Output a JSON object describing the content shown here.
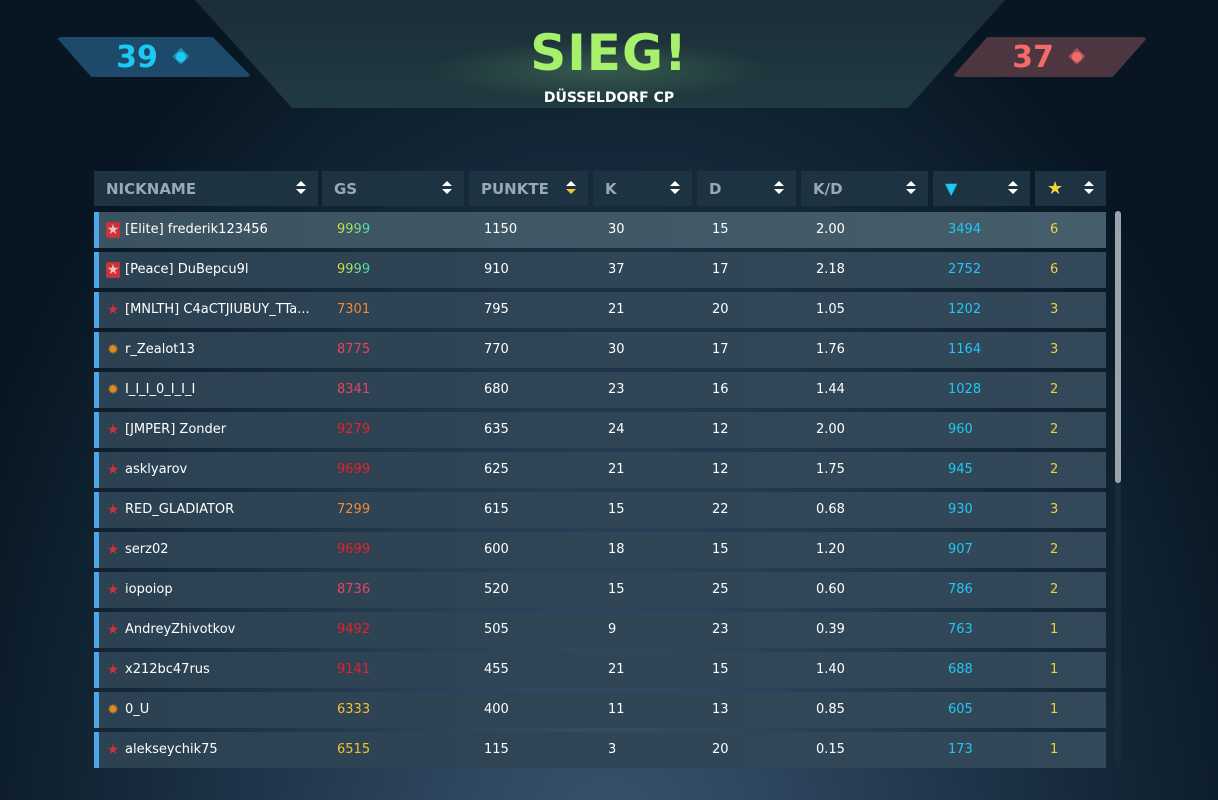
{
  "header": {
    "title": "SIEG!",
    "map": "DÜSSELDORF CP",
    "score_left": "39",
    "score_right": "37",
    "score_icon": "capture-point-icon"
  },
  "columns": [
    {
      "label": "NICKNAME"
    },
    {
      "label": "GS"
    },
    {
      "label": "PUNKTE",
      "sorted": true
    },
    {
      "label": "K"
    },
    {
      "label": "D"
    },
    {
      "label": "K/D"
    },
    {
      "label": "",
      "icon": "diamond-icon"
    },
    {
      "label": "",
      "icon": "star-icon"
    }
  ],
  "colors": {
    "kills_count": "#1ec8f5",
    "stars": "#f2d23c",
    "accent_win": "#a6f06c",
    "team_left": "#1ec8f5",
    "team_right": "#f36a6a"
  },
  "rows": [
    {
      "rank": "elite",
      "name": "[Elite] frederik123456",
      "gs": "9999",
      "gs_color": "#b8e04a",
      "punkte": "1150",
      "k": "30",
      "d": "15",
      "kd": "2.00",
      "dia": "3494",
      "stars": "6",
      "highlight": true
    },
    {
      "rank": "elite",
      "name": "[Peace] DuBepcu9l",
      "gs": "9999",
      "gs_color": "#b8e04a",
      "punkte": "910",
      "k": "37",
      "d": "17",
      "kd": "2.18",
      "dia": "2752",
      "stars": "6"
    },
    {
      "rank": "star",
      "name": "[MNLTH] C4aCTJIUBUY_TTa...",
      "gs": "7301",
      "gs_color": "#f08a3c",
      "punkte": "795",
      "k": "21",
      "d": "20",
      "kd": "1.05",
      "dia": "1202",
      "stars": "3"
    },
    {
      "rank": "gear",
      "name": "r_Zealot13",
      "gs": "8775",
      "gs_color": "#e8435e",
      "punkte": "770",
      "k": "30",
      "d": "17",
      "kd": "1.76",
      "dia": "1164",
      "stars": "3"
    },
    {
      "rank": "gear",
      "name": "I_I_I_0_I_I_I",
      "gs": "8341",
      "gs_color": "#e8435e",
      "punkte": "680",
      "k": "23",
      "d": "16",
      "kd": "1.44",
      "dia": "1028",
      "stars": "2"
    },
    {
      "rank": "star",
      "name": "[JMPER] Zonder",
      "gs": "9279",
      "gs_color": "#e8202a",
      "punkte": "635",
      "k": "24",
      "d": "12",
      "kd": "2.00",
      "dia": "960",
      "stars": "2"
    },
    {
      "rank": "star",
      "name": "asklyarov",
      "gs": "9699",
      "gs_color": "#e8202a",
      "punkte": "625",
      "k": "21",
      "d": "12",
      "kd": "1.75",
      "dia": "945",
      "stars": "2"
    },
    {
      "rank": "star",
      "name": "RED_GLADIATOR",
      "gs": "7299",
      "gs_color": "#f08a3c",
      "punkte": "615",
      "k": "15",
      "d": "22",
      "kd": "0.68",
      "dia": "930",
      "stars": "3"
    },
    {
      "rank": "star",
      "name": "serz02",
      "gs": "9699",
      "gs_color": "#e8202a",
      "punkte": "600",
      "k": "18",
      "d": "15",
      "kd": "1.20",
      "dia": "907",
      "stars": "2"
    },
    {
      "rank": "star",
      "name": "iopoiop",
      "gs": "8736",
      "gs_color": "#e8435e",
      "punkte": "520",
      "k": "15",
      "d": "25",
      "kd": "0.60",
      "dia": "786",
      "stars": "2"
    },
    {
      "rank": "star",
      "name": "AndreyZhivotkov",
      "gs": "9492",
      "gs_color": "#e8202a",
      "punkte": "505",
      "k": "9",
      "d": "23",
      "kd": "0.39",
      "dia": "763",
      "stars": "1"
    },
    {
      "rank": "star",
      "name": "x212bc47rus",
      "gs": "9141",
      "gs_color": "#e8202a",
      "punkte": "455",
      "k": "21",
      "d": "15",
      "kd": "1.40",
      "dia": "688",
      "stars": "1"
    },
    {
      "rank": "gear",
      "name": "0_U",
      "gs": "6333",
      "gs_color": "#f2c230",
      "punkte": "400",
      "k": "11",
      "d": "13",
      "kd": "0.85",
      "dia": "605",
      "stars": "1"
    },
    {
      "rank": "star",
      "name": "alekseychik75",
      "gs": "6515",
      "gs_color": "#f2c230",
      "punkte": "115",
      "k": "3",
      "d": "20",
      "kd": "0.15",
      "dia": "173",
      "stars": "1"
    }
  ]
}
